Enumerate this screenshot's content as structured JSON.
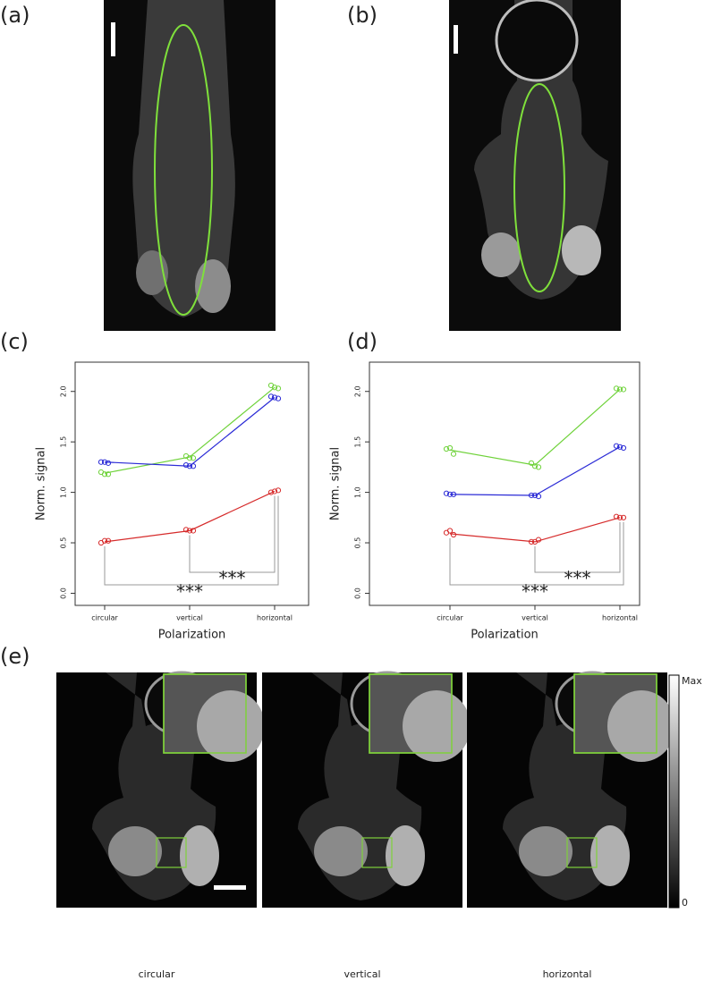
{
  "panels": [
    "(a)",
    "(b)",
    "(c)",
    "(d)",
    "(e)"
  ],
  "colorbar": {
    "max_label": "Max",
    "min_label": "0"
  },
  "captions": [
    "circular",
    "vertical",
    "horizontal"
  ],
  "chart_data": [
    {
      "type": "line",
      "xlabel": "Polarization",
      "ylabel": "Norm. signal",
      "categories": [
        "circular",
        "vertical",
        "horizontal"
      ],
      "ylim": [
        -0.12,
        2.29
      ],
      "yticks": [
        {
          "value": 0,
          "label": "0.0"
        },
        0.5,
        {
          "value": 1,
          "label": "1.0"
        },
        1.5,
        {
          "value": 2,
          "label": "2.0"
        }
      ],
      "series": [
        {
          "color": "#6fd23a",
          "values": [
            1.19,
            1.35,
            2.04
          ],
          "points": [
            [
              1.2,
              1.18,
              1.18
            ],
            [
              1.36,
              1.34,
              1.34
            ],
            [
              2.06,
              2.04,
              2.03
            ]
          ]
        },
        {
          "color": "#2b2bd6",
          "values": [
            1.3,
            1.26,
            1.94
          ],
          "points": [
            [
              1.3,
              1.3,
              1.29
            ],
            [
              1.27,
              1.26,
              1.26
            ],
            [
              1.95,
              1.94,
              1.93
            ]
          ]
        },
        {
          "color": "#d62b2b",
          "values": [
            0.51,
            0.62,
            1.01
          ],
          "points": [
            [
              0.5,
              0.52,
              0.52
            ],
            [
              0.63,
              0.62,
              0.62
            ],
            [
              1.0,
              1.01,
              1.02
            ]
          ]
        }
      ],
      "annotations": [
        "***",
        "***"
      ]
    },
    {
      "type": "line",
      "xlabel": "Polarization",
      "ylabel": "Norm. signal",
      "categories": [
        "circular",
        "vertical",
        "horizontal"
      ],
      "ylim": [
        -0.12,
        2.29
      ],
      "yticks": [
        {
          "value": 0,
          "label": "0.0"
        },
        0.5,
        {
          "value": 1,
          "label": "1.0"
        },
        1.5,
        {
          "value": 2,
          "label": "2.0"
        }
      ],
      "series": [
        {
          "color": "#6fd23a",
          "values": [
            1.42,
            1.27,
            2.02
          ],
          "points": [
            [
              1.43,
              1.44,
              1.38
            ],
            [
              1.29,
              1.26,
              1.25
            ],
            [
              2.03,
              2.02,
              2.02
            ]
          ]
        },
        {
          "color": "#2b2bd6",
          "values": [
            0.98,
            0.97,
            1.45
          ],
          "points": [
            [
              0.99,
              0.98,
              0.98
            ],
            [
              0.97,
              0.97,
              0.96
            ],
            [
              1.46,
              1.45,
              1.44
            ]
          ]
        },
        {
          "color": "#d62b2b",
          "values": [
            0.59,
            0.51,
            0.75
          ],
          "points": [
            [
              0.6,
              0.62,
              0.58
            ],
            [
              0.51,
              0.51,
              0.53
            ],
            [
              0.76,
              0.75,
              0.75
            ]
          ]
        }
      ],
      "annotations": [
        "***",
        "***"
      ]
    }
  ]
}
